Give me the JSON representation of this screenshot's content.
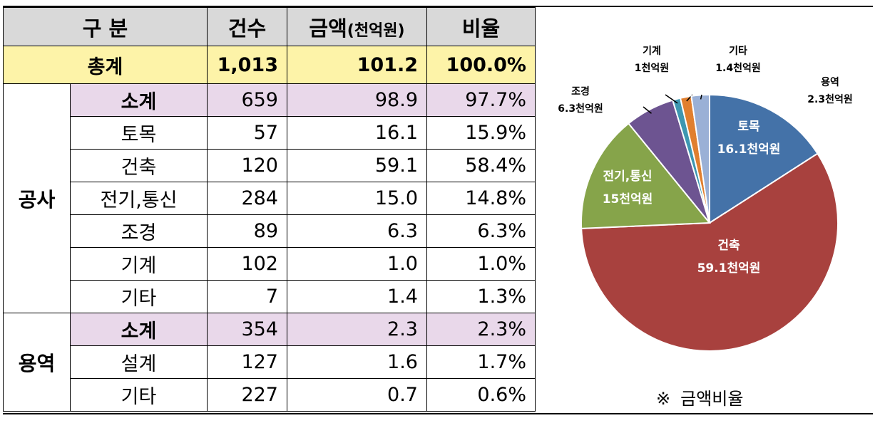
{
  "table": {
    "headers": {
      "category": "구 분",
      "count": "건수",
      "amount": "금액",
      "amount_unit": "(천억원)",
      "ratio": "비율"
    },
    "total": {
      "label": "총계",
      "count": "1,013",
      "amount": "101.2",
      "ratio": "100.0%"
    },
    "groups": [
      {
        "name": "공사",
        "subtotal": {
          "label": "소계",
          "count": "659",
          "amount": "98.9",
          "ratio": "97.7%"
        },
        "rows": [
          {
            "label": "토목",
            "count": "57",
            "amount": "16.1",
            "ratio": "15.9%"
          },
          {
            "label": "건축",
            "count": "120",
            "amount": "59.1",
            "ratio": "58.4%"
          },
          {
            "label": "전기,통신",
            "count": "284",
            "amount": "15.0",
            "ratio": "14.8%"
          },
          {
            "label": "조경",
            "count": "89",
            "amount": "6.3",
            "ratio": "6.3%"
          },
          {
            "label": "기계",
            "count": "102",
            "amount": "1.0",
            "ratio": "1.0%"
          },
          {
            "label": "기타",
            "count": "7",
            "amount": "1.4",
            "ratio": "1.3%"
          }
        ]
      },
      {
        "name": "용역",
        "subtotal": {
          "label": "소계",
          "count": "354",
          "amount": "2.3",
          "ratio": "2.3%"
        },
        "rows": [
          {
            "label": "설계",
            "count": "127",
            "amount": "1.6",
            "ratio": "1.7%"
          },
          {
            "label": "기타",
            "count": "227",
            "amount": "0.7",
            "ratio": "0.6%"
          }
        ]
      }
    ]
  },
  "chart_data": {
    "type": "pie",
    "title": "",
    "start_angle_deg": 0,
    "direction": "clockwise",
    "slices": [
      {
        "name": "토목",
        "value": 16.1,
        "label": "16.1천억원",
        "color": "#4472a8"
      },
      {
        "name": "건축",
        "value": 59.1,
        "label": "59.1천억원",
        "color": "#a8413e"
      },
      {
        "name": "전기,통신",
        "value": 15.0,
        "label": "15천억원",
        "color": "#86a44a"
      },
      {
        "name": "조경",
        "value": 6.3,
        "label": "6.3천억원",
        "color": "#6d5491"
      },
      {
        "name": "기계",
        "value": 1.0,
        "label": "1천억원",
        "color": "#3d97b1"
      },
      {
        "name": "기타",
        "value": 1.4,
        "label": "1.4천억원",
        "color": "#e07f2f"
      },
      {
        "name": "용역",
        "value": 2.3,
        "label": "2.3천억원",
        "color": "#9ab0d6"
      }
    ]
  },
  "note": {
    "mark": "※",
    "text": "금액비율"
  }
}
